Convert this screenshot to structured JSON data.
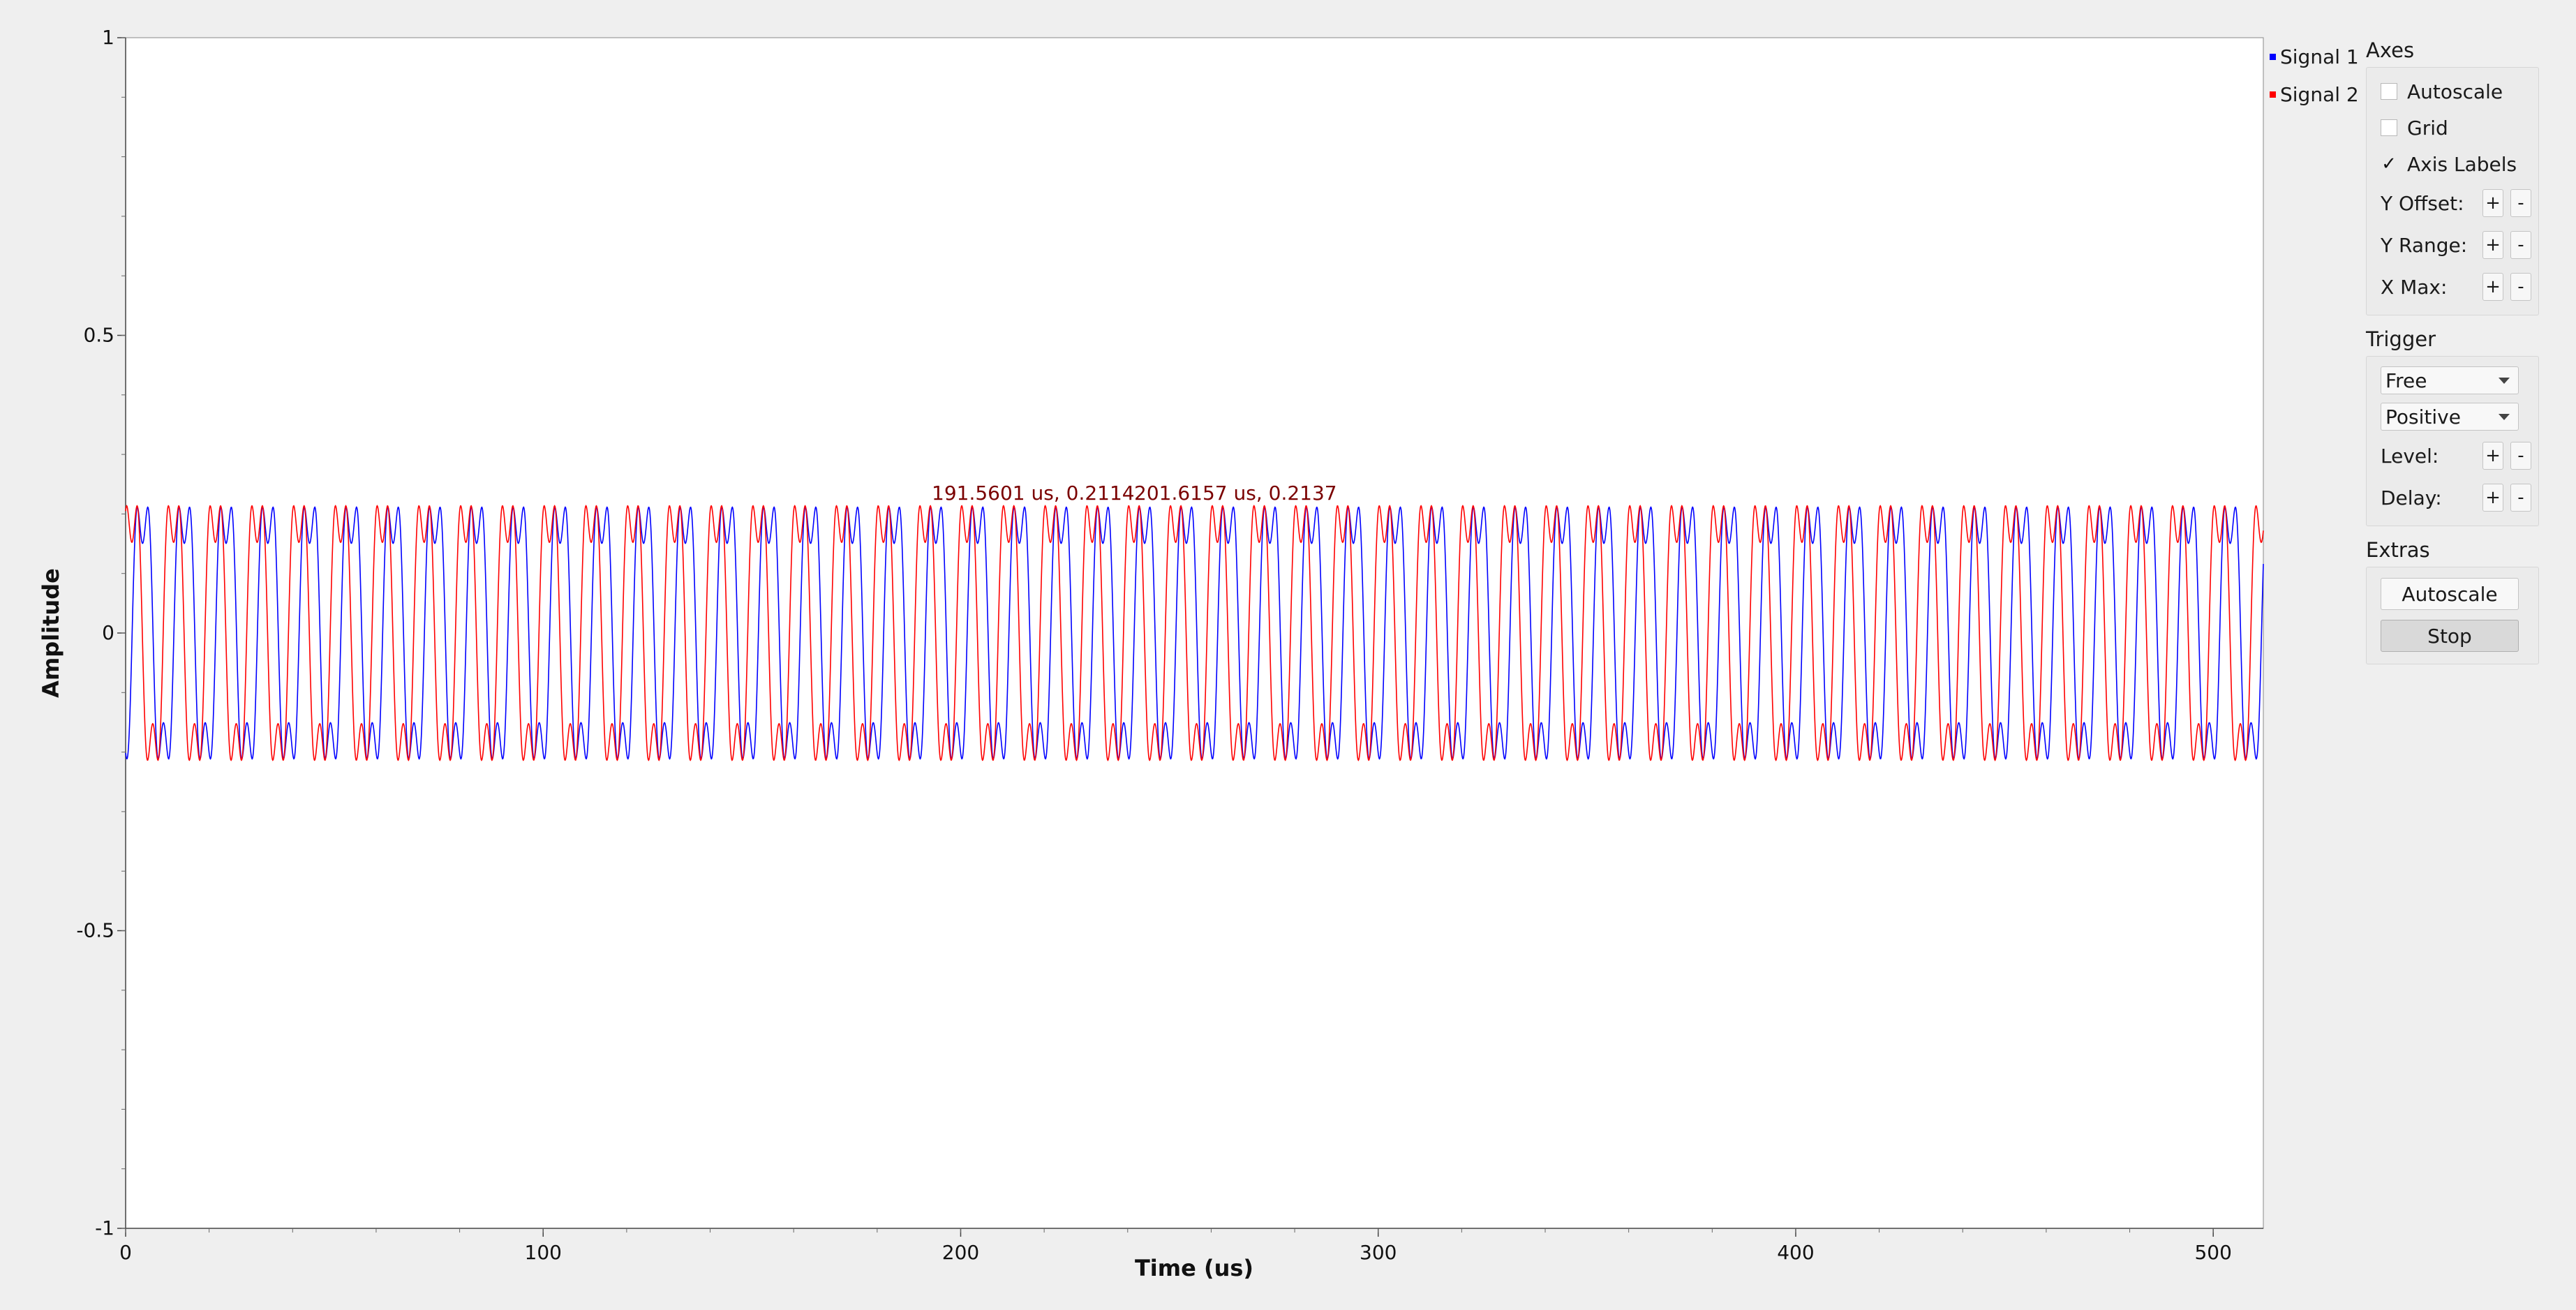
{
  "legend": {
    "items": [
      {
        "label": "Signal 1",
        "color": "#0000ff"
      },
      {
        "label": "Signal 2",
        "color": "#ff0000"
      }
    ]
  },
  "panel": {
    "axes": {
      "title": "Axes",
      "autoscale_label": "Autoscale",
      "autoscale_checked": false,
      "grid_label": "Grid",
      "grid_checked": false,
      "axis_labels_label": "Axis Labels",
      "axis_labels_checked": true,
      "check_mark": "✓",
      "y_offset_label": "Y Offset:",
      "y_range_label": "Y Range:",
      "x_max_label": "X Max:",
      "plus": "+",
      "minus": "-"
    },
    "trigger": {
      "title": "Trigger",
      "mode_value": "Free",
      "slope_value": "Positive",
      "level_label": "Level:",
      "delay_label": "Delay:"
    },
    "extras": {
      "title": "Extras",
      "autoscale_button": "Autoscale",
      "stop_button": "Stop"
    }
  },
  "chart_data": {
    "type": "line",
    "title": "",
    "xlabel": "Time (us)",
    "ylabel": "Amplitude",
    "xlim": [
      0,
      512
    ],
    "ylim": [
      -1,
      1
    ],
    "x_ticks": [
      "0",
      "100",
      "200",
      "300",
      "400",
      "500"
    ],
    "y_ticks": [
      "1",
      "0.5",
      "0",
      "-0.5",
      "-1"
    ],
    "grid": false,
    "legend_position": "right",
    "series": [
      {
        "name": "Signal 1",
        "color": "#0000ff",
        "period_us": 10.0,
        "waveform": "sine with 3rd harmonic",
        "amplitude_peak": 0.2114,
        "phase_us": 1.5601
      },
      {
        "name": "Signal 2",
        "color": "#ff0000",
        "period_us": 10.0,
        "waveform": "sine with 3rd harmonic",
        "amplitude_peak": 0.2137,
        "phase_us": -1.0
      }
    ],
    "annotations": [
      {
        "text": "191.5601 us, 0.2114",
        "x": 191.5601,
        "y": 0.2114
      },
      {
        "text": "201.6157 us, 0.2137",
        "x": 201.6157,
        "y": 0.2137
      }
    ]
  }
}
